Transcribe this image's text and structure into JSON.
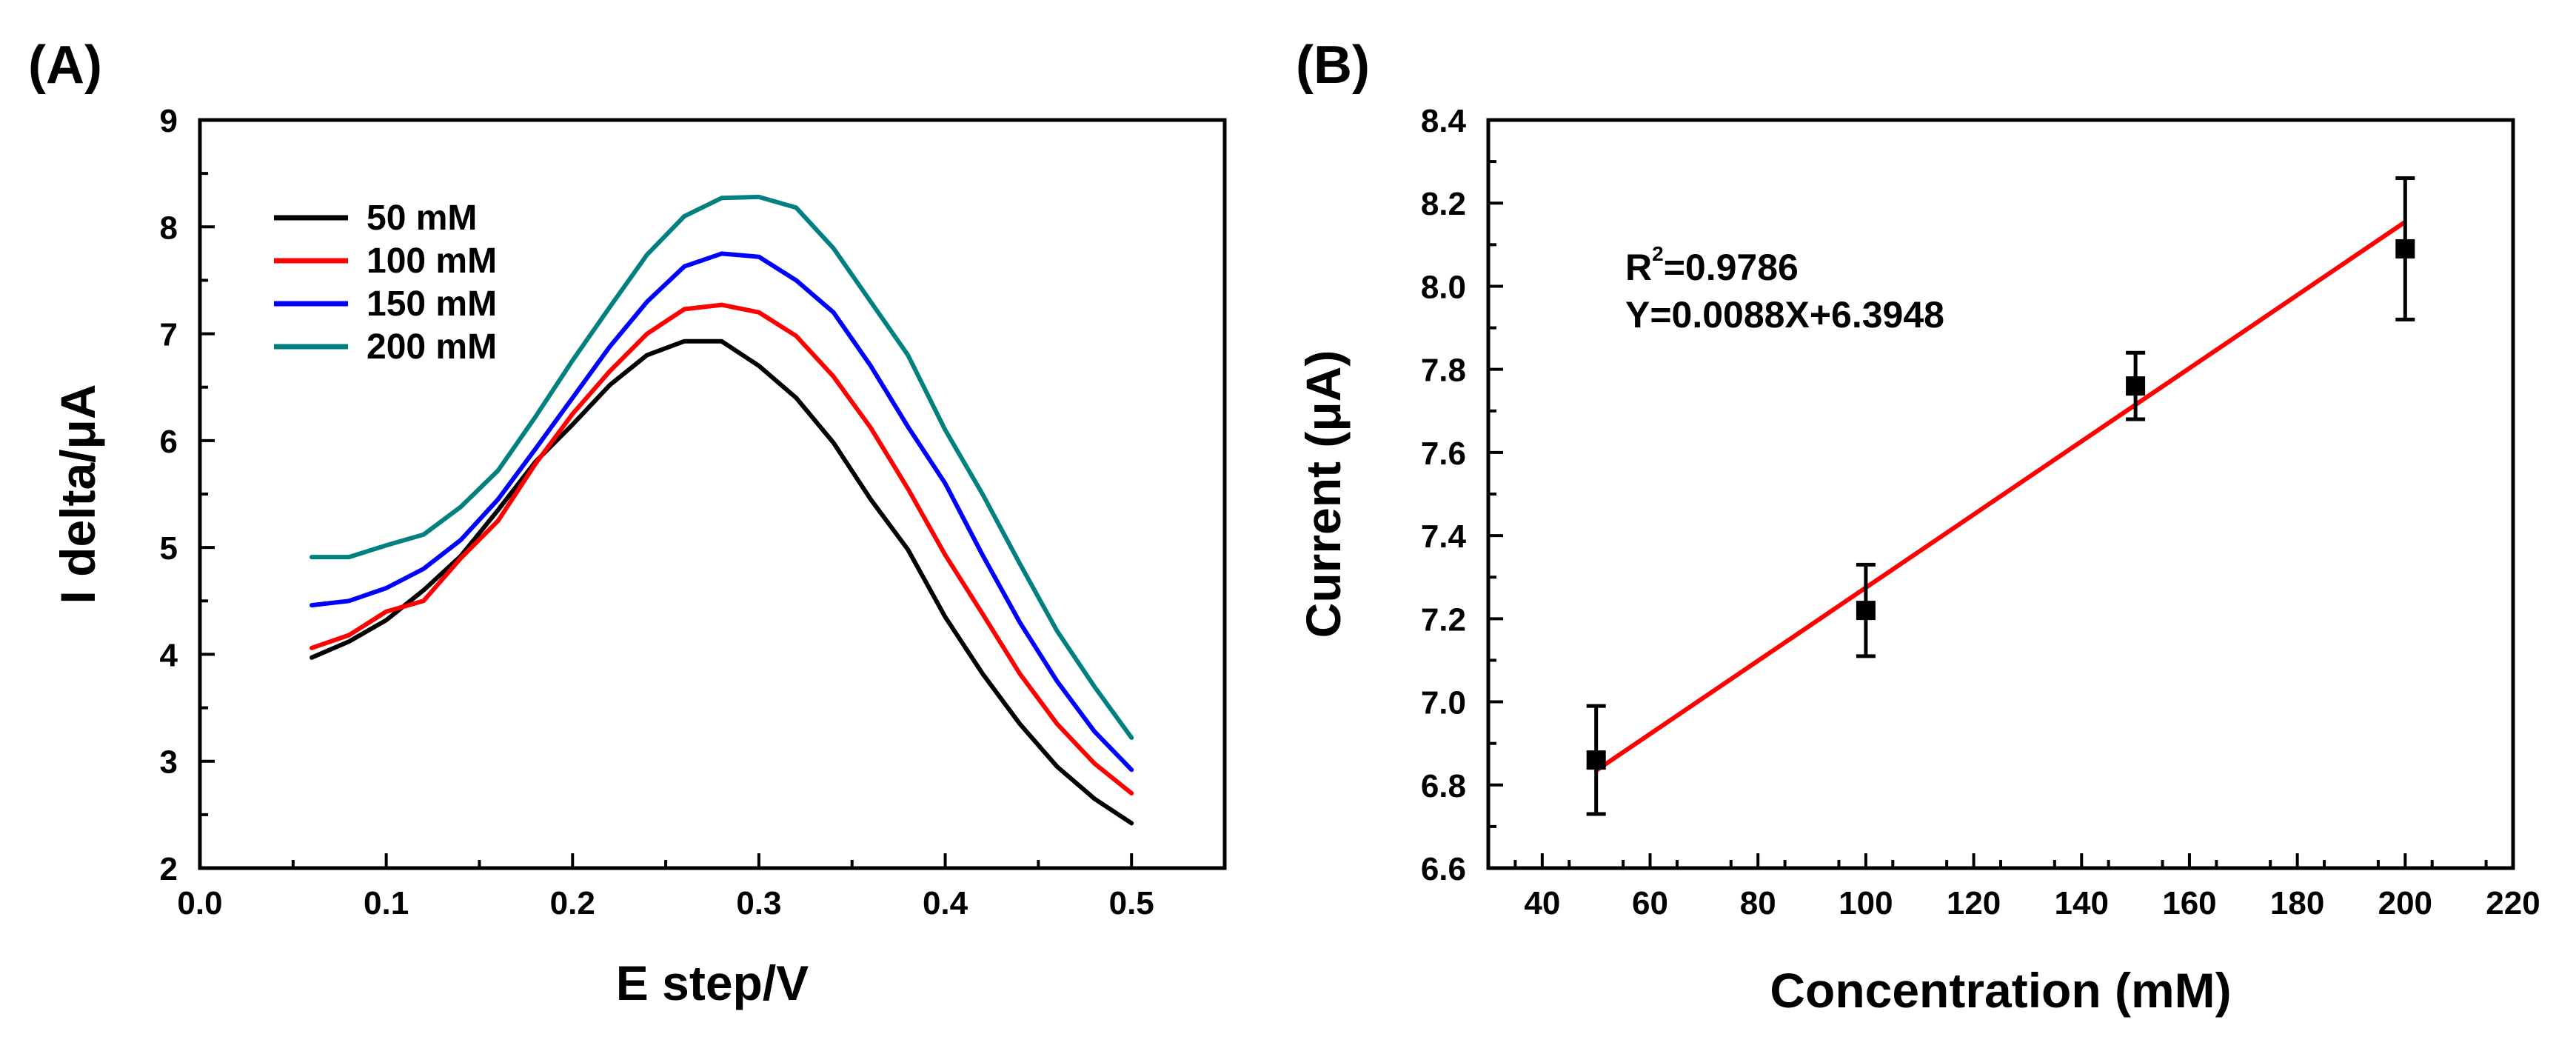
{
  "chart_data": [
    {
      "panel_label": "(A)",
      "type": "line",
      "xlabel": "E step/V",
      "ylabel": "I delta/μA",
      "xlim": [
        0.0,
        0.55
      ],
      "ylim": [
        2,
        9
      ],
      "xticks": [
        0.0,
        0.1,
        0.2,
        0.3,
        0.4,
        0.5
      ],
      "xtick_labels": [
        "0.0",
        "0.1",
        "0.2",
        "0.3",
        "0.4",
        "0.5"
      ],
      "yticks": [
        2,
        3,
        4,
        5,
        6,
        7,
        8,
        9
      ],
      "ytick_labels": [
        "2",
        "3",
        "4",
        "5",
        "6",
        "7",
        "8",
        "9"
      ],
      "legend_position": "upper-left",
      "x": [
        0.06,
        0.08,
        0.1,
        0.12,
        0.14,
        0.16,
        0.18,
        0.2,
        0.22,
        0.24,
        0.26,
        0.28,
        0.3,
        0.32,
        0.34,
        0.36,
        0.38,
        0.4,
        0.42,
        0.44,
        0.46,
        0.48,
        0.5
      ],
      "series": [
        {
          "name": "50 mM",
          "label": "  50 mM",
          "color": "#000000",
          "values": [
            3.97,
            4.12,
            4.32,
            4.6,
            4.92,
            5.35,
            5.8,
            6.15,
            6.52,
            6.8,
            6.93,
            6.93,
            6.7,
            6.4,
            5.98,
            5.45,
            4.98,
            4.35,
            3.82,
            3.35,
            2.95,
            2.65,
            2.42
          ]
        },
        {
          "name": "100 mM",
          "label": "100 mM",
          "color": "#ff0000",
          "values": [
            4.06,
            4.18,
            4.4,
            4.5,
            4.9,
            5.25,
            5.78,
            6.25,
            6.65,
            7.0,
            7.23,
            7.27,
            7.2,
            6.98,
            6.6,
            6.12,
            5.55,
            4.93,
            4.38,
            3.82,
            3.35,
            2.98,
            2.7
          ]
        },
        {
          "name": "150 mM",
          "label": "150 mM",
          "color": "#0000ff",
          "values": [
            4.46,
            4.5,
            4.62,
            4.8,
            5.07,
            5.45,
            5.92,
            6.4,
            6.88,
            7.3,
            7.63,
            7.75,
            7.72,
            7.5,
            7.2,
            6.7,
            6.13,
            5.6,
            4.93,
            4.3,
            3.75,
            3.28,
            2.92
          ]
        },
        {
          "name": "200 mM",
          "label": "200 mM",
          "color": "#008080",
          "values": [
            4.91,
            4.91,
            5.02,
            5.12,
            5.38,
            5.72,
            6.22,
            6.75,
            7.25,
            7.74,
            8.1,
            8.27,
            8.28,
            8.18,
            7.8,
            7.3,
            6.8,
            6.1,
            5.5,
            4.85,
            4.22,
            3.7,
            3.22
          ]
        }
      ]
    },
    {
      "panel_label": "(B)",
      "type": "scatter",
      "xlabel": "Concentration (mM)",
      "ylabel": "Current (μA)",
      "xlim": [
        30,
        220
      ],
      "ylim": [
        6.6,
        8.4
      ],
      "xticks": [
        40,
        60,
        80,
        100,
        120,
        140,
        160,
        180,
        200,
        220
      ],
      "xtick_labels": [
        "40",
        "60",
        "80",
        "100",
        "120",
        "140",
        "160",
        "180",
        "200",
        "220"
      ],
      "yticks": [
        6.6,
        6.8,
        7.0,
        7.2,
        7.4,
        7.6,
        7.8,
        8.0,
        8.2,
        8.4
      ],
      "ytick_labels": [
        "6.6",
        "6.8",
        "7.0",
        "7.2",
        "7.4",
        "7.6",
        "7.8",
        "8.0",
        "8.2",
        "8.4"
      ],
      "points": {
        "x": [
          50,
          100,
          150,
          200
        ],
        "y": [
          6.86,
          7.22,
          7.76,
          8.09
        ],
        "error": [
          0.13,
          0.11,
          0.08,
          0.17
        ],
        "color": "#000000"
      },
      "fit": {
        "slope": 0.0088,
        "intercept": 6.3948,
        "x_range": [
          50,
          200
        ],
        "color": "#ff0000"
      },
      "annotation": {
        "r_squared_label": "R",
        "r_squared_sup": "2",
        "r_squared_value": "=0.9786",
        "equation": "Y=0.0088X+6.3948"
      }
    }
  ]
}
